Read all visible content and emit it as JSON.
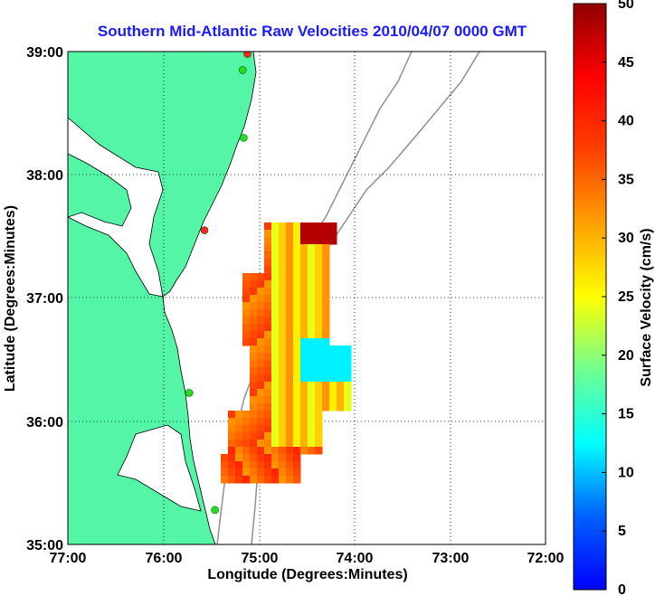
{
  "title": "Southern Mid-Atlantic Raw Velocities 2010/04/07 0000 GMT",
  "xlabel": "Longitude (Degrees:Minutes)",
  "ylabel": "Latitude (Degrees:Minutes)",
  "x_ticks": [
    "77:00",
    "76:00",
    "75:00",
    "74:00",
    "73:00",
    "72:00"
  ],
  "y_ticks": [
    "39:00",
    "38:00",
    "37:00",
    "36:00",
    "35:00"
  ],
  "colorbar": {
    "label": "Surface Velocity (cm/s)",
    "ticks": [
      "50",
      "45",
      "40",
      "35",
      "30",
      "25",
      "20",
      "15",
      "10",
      "5",
      "0"
    ],
    "min": 0,
    "max": 50
  },
  "colors": {
    "land": "#55f5a8",
    "coastline": "#000000",
    "bathymetry": "#909090",
    "title": "#1a1aff",
    "station_active": "#22dd22",
    "station_inactive": "#ff2222"
  },
  "chart_data": {
    "type": "map",
    "xlim": [
      -77,
      -72
    ],
    "ylim": [
      35,
      39
    ],
    "grid": true,
    "stations": [
      {
        "lon": -75.12,
        "lat": 38.98,
        "status": "inactive"
      },
      {
        "lon": -75.17,
        "lat": 38.85,
        "status": "active"
      },
      {
        "lon": -75.16,
        "lat": 38.3,
        "status": "active"
      },
      {
        "lon": -75.57,
        "lat": 37.55,
        "status": "inactive"
      },
      {
        "lon": -75.73,
        "lat": 36.23,
        "status": "active"
      },
      {
        "lon": -75.46,
        "lat": 35.28,
        "status": "active"
      }
    ]
  }
}
